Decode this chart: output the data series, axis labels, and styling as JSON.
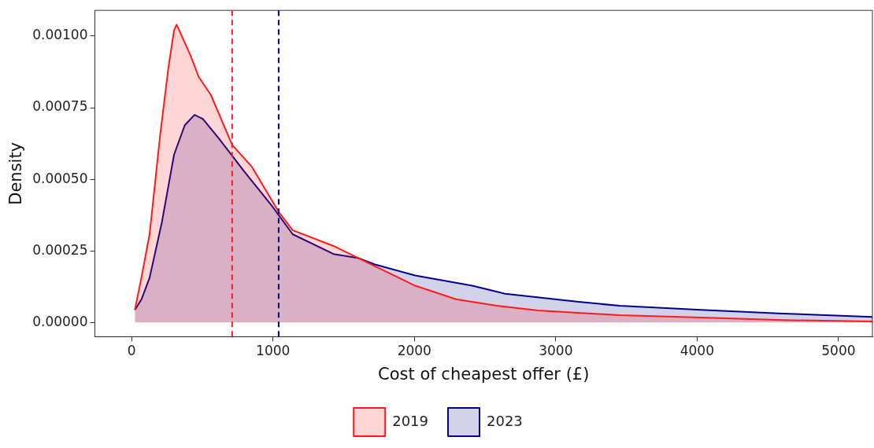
{
  "chart_data": {
    "type": "area",
    "xlabel": "Cost of cheapest offer (£)",
    "ylabel": "Density",
    "xlim": [
      -260,
      5240
    ],
    "ylim": [
      -5e-05,
      0.00109
    ],
    "xticks": [
      0,
      1000,
      2000,
      3000,
      4000,
      5000
    ],
    "yticks": [
      {
        "value": 0,
        "label": "0.00000"
      },
      {
        "value": 0.00025,
        "label": "0.00025"
      },
      {
        "value": 0.0005,
        "label": "0.00050"
      },
      {
        "value": 0.00075,
        "label": "0.00075"
      },
      {
        "value": 0.001,
        "label": "0.00100"
      }
    ],
    "grid": false,
    "legend": "bottom",
    "line_style": "solid",
    "series": [
      {
        "name": "2019",
        "color": "#ff1a1a",
        "x": [
          23,
          69,
          127,
          202,
          260,
          300,
          318,
          358,
          416,
          474,
          561,
          711,
          850,
          1040,
          1139,
          1428,
          1717,
          2006,
          2295,
          2584,
          2873,
          3451,
          4029,
          4607,
          5240
        ],
        "values": [
          4.4e-05,
          0.000156,
          0.000308,
          0.000656,
          0.00089,
          0.00102,
          0.00104,
          0.000997,
          0.000933,
          0.000858,
          0.000794,
          0.00062,
          0.000544,
          0.000386,
          0.000322,
          0.000267,
          0.000197,
          0.000128,
          8.1e-05,
          5.8e-05,
          4.2e-05,
          2.5e-05,
          1.7e-05,
          8e-06,
          3e-06
        ]
      },
      {
        "name": "2023",
        "color": "#00008b",
        "x": [
          23,
          69,
          127,
          214,
          300,
          376,
          445,
          503,
          618,
          792,
          994,
          1139,
          1428,
          1601,
          1717,
          2006,
          2410,
          2642,
          3162,
          3451,
          4029,
          4607,
          5240
        ],
        "values": [
          4.4e-05,
          8e-05,
          0.000156,
          0.00035,
          0.000586,
          0.000689,
          0.000725,
          0.000711,
          0.000642,
          0.00053,
          0.000406,
          0.000308,
          0.000239,
          0.000225,
          0.000203,
          0.000164,
          0.000128,
          0.0001,
          7.2e-05,
          5.8e-05,
          4.4e-05,
          3.1e-05,
          1.9e-05
        ]
      }
    ],
    "ref_lines": [
      {
        "axis": "x",
        "value": 711,
        "color": "#ff1a1a",
        "line_style": "dashed"
      },
      {
        "axis": "x",
        "value": 1040,
        "color": "#00008b",
        "line_style": "dashed"
      }
    ]
  }
}
